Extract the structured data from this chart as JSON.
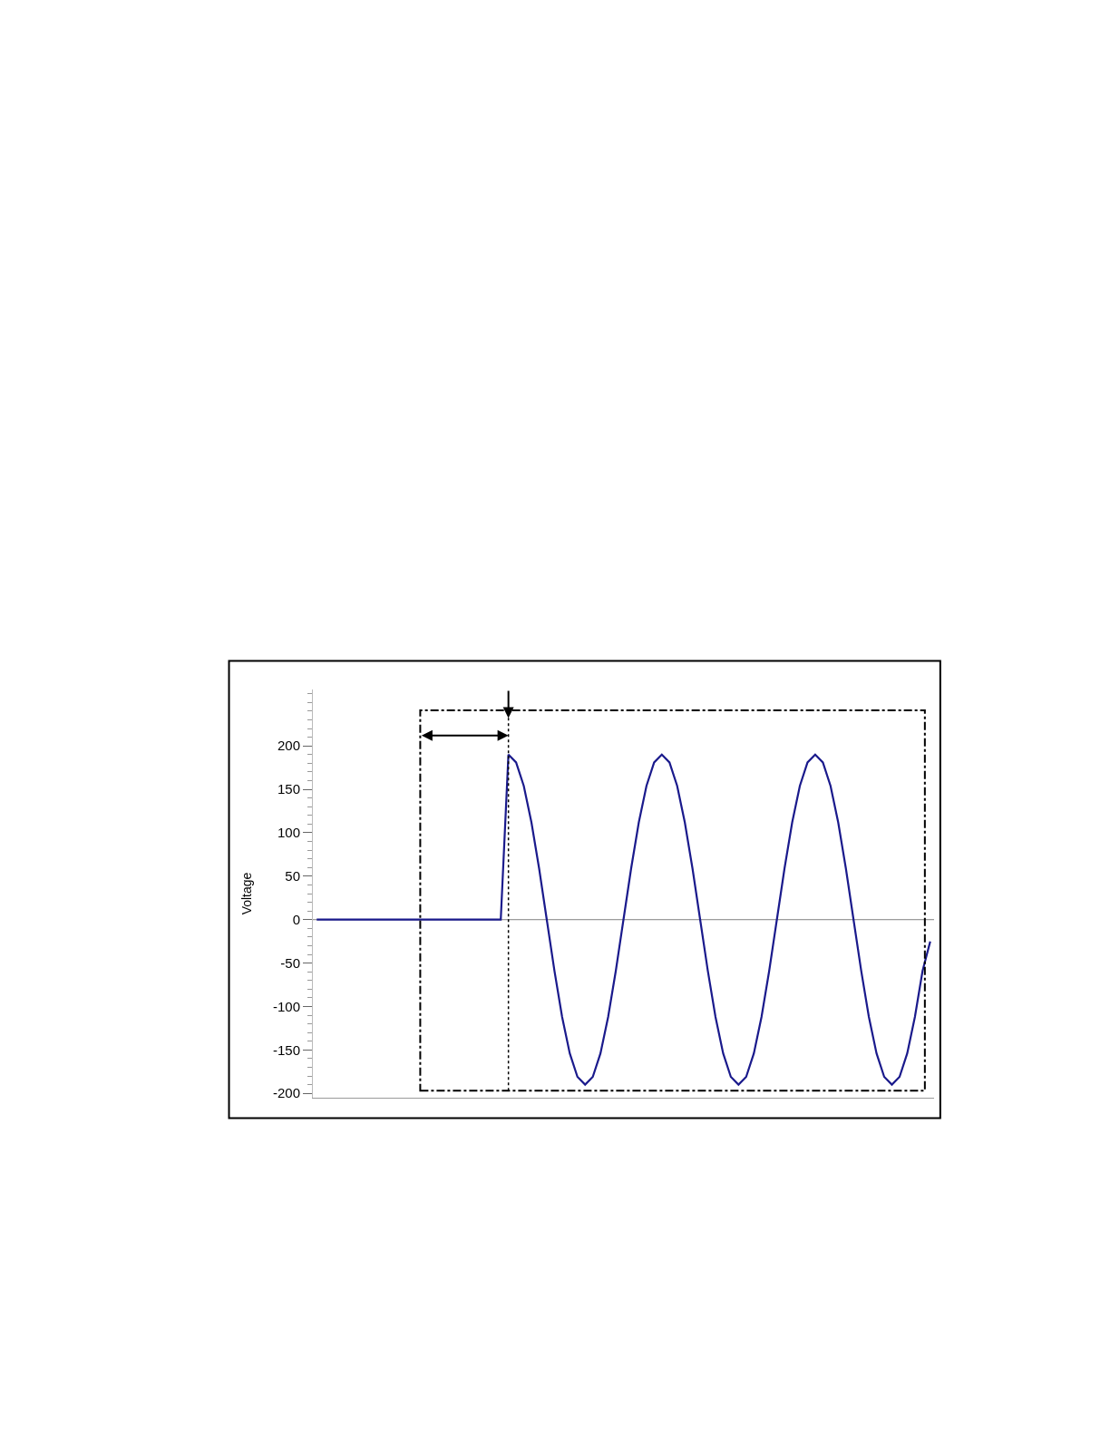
{
  "chart_data": {
    "type": "line",
    "ylabel": "Voltage",
    "categories": [
      null,
      null,
      null,
      null,
      null,
      null,
      null,
      null,
      null,
      null,
      null,
      null,
      null,
      null,
      null,
      null,
      null,
      null,
      null,
      null,
      null,
      null,
      null,
      null,
      null,
      null,
      null,
      null,
      null,
      null,
      null,
      null,
      null,
      null,
      null,
      null,
      null,
      null,
      null,
      null,
      null,
      null,
      null,
      null,
      null,
      null,
      null,
      null,
      null,
      null,
      null,
      null,
      null,
      null,
      null,
      null,
      null,
      null,
      null,
      null,
      null,
      null,
      null,
      null,
      null,
      null,
      null,
      null,
      null,
      null,
      null,
      null,
      null,
      null,
      null,
      null,
      null,
      null,
      null,
      null,
      null
    ],
    "series": [
      {
        "color": "#1a1a8c",
        "values": [
          0,
          0,
          0,
          0,
          0,
          0,
          0,
          0,
          0,
          0,
          0,
          0,
          0,
          0,
          0,
          0,
          0,
          0,
          0,
          0,
          0,
          0,
          0,
          0,
          0,
          190,
          181,
          154,
          112,
          59,
          0,
          -59,
          -112,
          -154,
          -181,
          -190,
          -181,
          -154,
          -112,
          -59,
          0,
          59,
          112,
          154,
          181,
          190,
          181,
          154,
          112,
          59,
          0,
          -59,
          -112,
          -154,
          -181,
          -190,
          -181,
          -154,
          -112,
          -59,
          0,
          59,
          112,
          154,
          181,
          190,
          181,
          154,
          112,
          59,
          0,
          -59,
          -112,
          -154,
          -181,
          -190,
          -181,
          -154,
          -112,
          -59,
          -25
        ]
      }
    ],
    "ylim": [
      -205,
      265
    ],
    "yticks": [
      -200,
      -150,
      -100,
      -50,
      0,
      50,
      100,
      150,
      200
    ],
    "ref_lines": [
      {
        "axis": "y",
        "value": 0,
        "color": "#808080"
      }
    ],
    "grid": false,
    "legend": false,
    "marker": "none",
    "line_style": "solid"
  }
}
